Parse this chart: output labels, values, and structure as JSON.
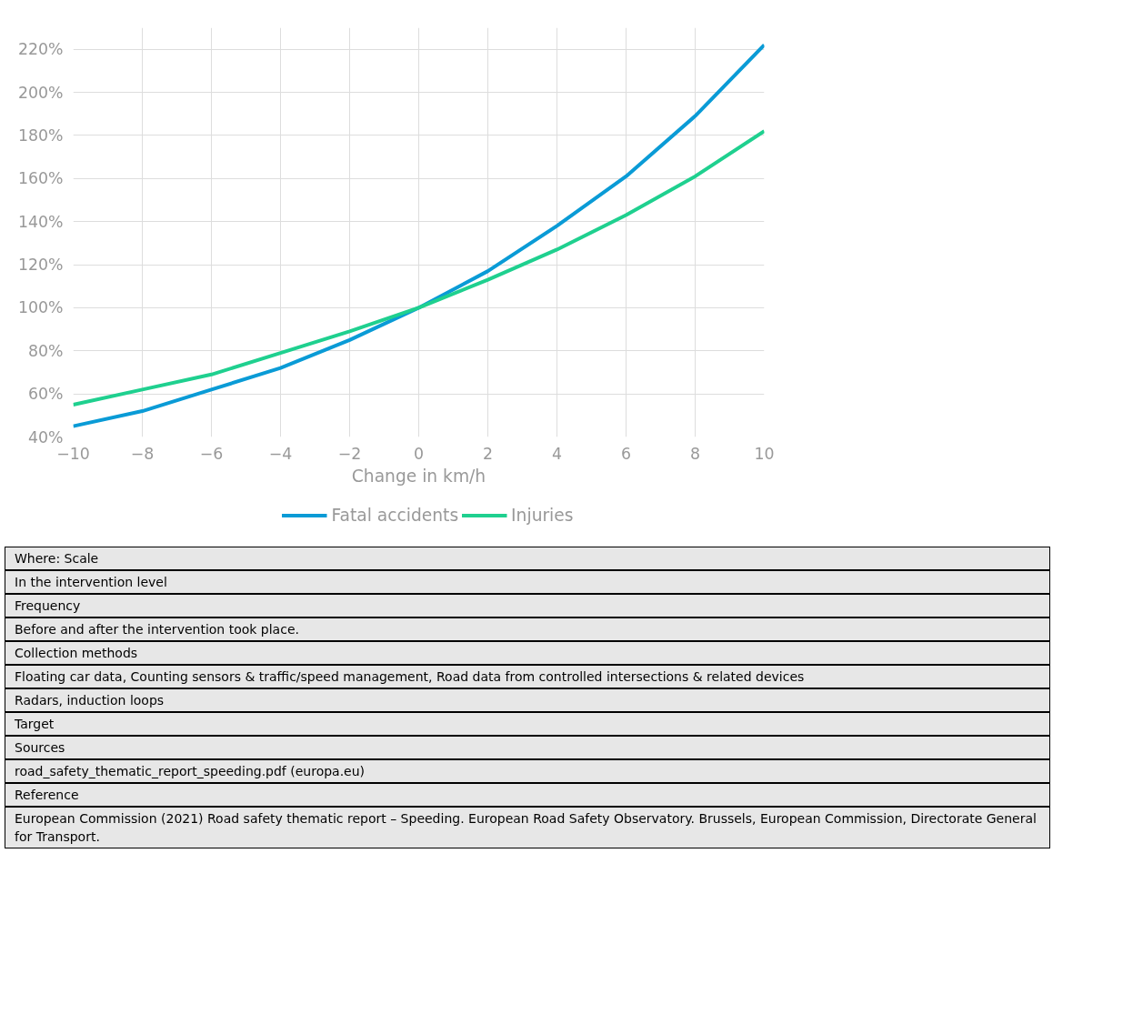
{
  "chart_data": {
    "type": "line",
    "xlabel": "Change in km/h",
    "x": [
      -10,
      -8,
      -6,
      -4,
      -2,
      0,
      2,
      4,
      6,
      8,
      10
    ],
    "series": [
      {
        "name": "Fatal accidents",
        "color": "#0a9bd6",
        "values": [
          45,
          52,
          62,
          72,
          85,
          100,
          117,
          138,
          161,
          189,
          222
        ]
      },
      {
        "name": "Injuries",
        "color": "#1fd08f",
        "values": [
          55,
          62,
          69,
          79,
          89,
          100,
          113,
          127,
          143,
          161,
          182
        ]
      }
    ],
    "xlim": [
      -10,
      10
    ],
    "xticks": [
      -10,
      -8,
      -6,
      -4,
      -2,
      0,
      2,
      4,
      6,
      8,
      10
    ],
    "ylim": [
      40,
      230
    ],
    "yticks": [
      {
        "value": 40,
        "label": "40%"
      },
      {
        "value": 60,
        "label": "60%"
      },
      {
        "value": 80,
        "label": "80%"
      },
      {
        "value": 100,
        "label": "100%"
      },
      {
        "value": 120,
        "label": "120%"
      },
      {
        "value": 140,
        "label": "140%"
      },
      {
        "value": 160,
        "label": "160%"
      },
      {
        "value": 180,
        "label": "180%"
      },
      {
        "value": 200,
        "label": "200%"
      },
      {
        "value": 220,
        "label": "220%"
      }
    ],
    "grid": true,
    "legend": "bottom",
    "marker": "none",
    "line_style": "solid",
    "annotations": [
      "Where: Scale",
      "In the intervention level",
      "Frequency",
      "Before and after the intervention took place.",
      "Collection methods",
      "Floating car data, Counting sensors & traffic/speed management, Road data from controlled intersections & related devices",
      "Radars, induction loops",
      "Target",
      "Sources",
      "road_safety_thematic_report_speeding.pdf (europa.eu)",
      "Reference",
      "European Commission (2021) Road safety thematic report – Speeding. European Road Safety Observatory. Brussels, European Commission, Directorate General for Transport."
    ]
  }
}
